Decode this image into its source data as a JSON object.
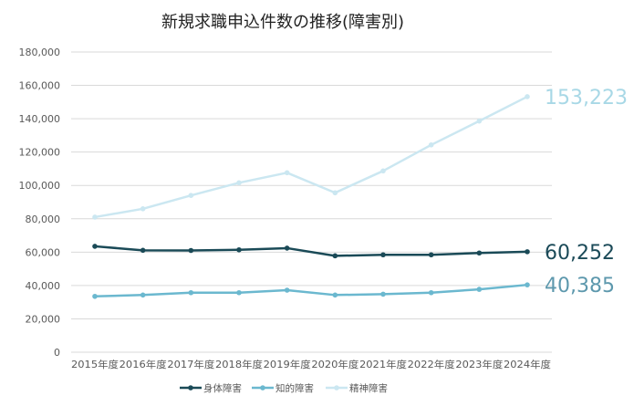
{
  "chart_data": {
    "type": "line",
    "title": "新規求職申込件数の推移(障害別)",
    "xlabel": "",
    "ylabel": "",
    "ylim": [
      0,
      180000
    ],
    "yticks": [
      0,
      20000,
      40000,
      60000,
      80000,
      100000,
      120000,
      140000,
      160000,
      180000
    ],
    "ytick_labels": [
      "0",
      "20,000",
      "40,000",
      "60,000",
      "80,000",
      "100,000",
      "120,000",
      "140,000",
      "160,000",
      "180,000"
    ],
    "categories": [
      "2015年度",
      "2016年度",
      "2017年度",
      "2018年度",
      "2019年度",
      "2020年度",
      "2021年度",
      "2022年度",
      "2023年度",
      "2024年度"
    ],
    "grid": true,
    "legend_position": "bottom",
    "series": [
      {
        "name": "身体障害",
        "color": "#1a4a57",
        "label_color": "#1b4a58",
        "end_label": "60,252",
        "values": [
          63500,
          61100,
          61000,
          61400,
          62400,
          57800,
          58400,
          58400,
          59500,
          60252
        ]
      },
      {
        "name": "知的障害",
        "color": "#6bb8cf",
        "label_color": "#5d98ad",
        "end_label": "40,385",
        "values": [
          33500,
          34300,
          35700,
          35700,
          37200,
          34300,
          34800,
          35700,
          37700,
          40385
        ]
      },
      {
        "name": "精神障害",
        "color": "#cbe7f1",
        "label_color": "#a8d8e6",
        "end_label": "153,223",
        "values": [
          81000,
          86000,
          94000,
          101600,
          107600,
          95600,
          108700,
          124300,
          138600,
          153223
        ]
      }
    ]
  }
}
